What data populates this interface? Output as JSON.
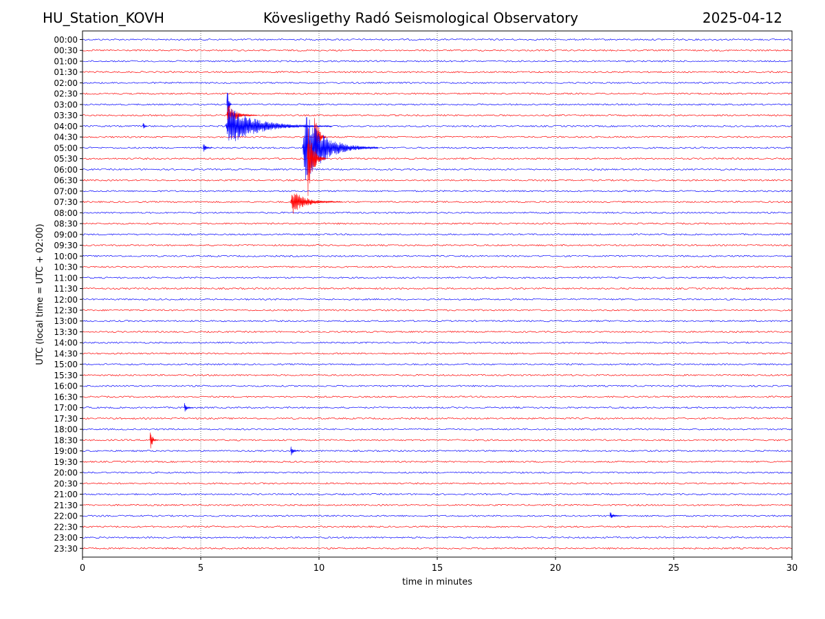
{
  "header": {
    "station": "HU_Station_KOVH",
    "title": "Kövesligethy Radó Seismological Observatory",
    "date": "2025-04-12"
  },
  "chart_data": {
    "type": "line",
    "title": "Kövesligethy Radó Seismological Observatory",
    "xlabel": "time in minutes",
    "ylabel": "UTC (local time = UTC + 02:00)",
    "xlim": [
      0,
      30
    ],
    "xticks": [
      0,
      5,
      10,
      15,
      20,
      25,
      30
    ],
    "grid": "vertical dotted at each x tick",
    "rows": [
      "00:00",
      "00:30",
      "01:00",
      "01:30",
      "02:00",
      "02:30",
      "03:00",
      "03:30",
      "04:00",
      "04:30",
      "05:00",
      "05:30",
      "06:00",
      "06:30",
      "07:00",
      "07:30",
      "08:00",
      "08:30",
      "09:00",
      "09:30",
      "10:00",
      "10:30",
      "11:00",
      "11:30",
      "12:00",
      "12:30",
      "13:00",
      "13:30",
      "14:00",
      "14:30",
      "15:00",
      "15:30",
      "16:00",
      "16:30",
      "17:00",
      "17:30",
      "18:00",
      "18:30",
      "19:00",
      "19:30",
      "20:00",
      "20:30",
      "21:00",
      "21:30",
      "22:00",
      "22:30",
      "23:00",
      "23:30"
    ],
    "row_colors": [
      "#0000ff",
      "#ff0000"
    ],
    "events": [
      {
        "row": "03:00",
        "minute": 6.1,
        "peak": 1.0,
        "duration": 0.2
      },
      {
        "row": "03:30",
        "minute": 6.1,
        "peak": 0.35,
        "duration": 1.3
      },
      {
        "row": "04:00",
        "minute": 6.05,
        "peak": 0.55,
        "duration": 4.5
      },
      {
        "row": "04:00",
        "minute": 2.55,
        "peak": 0.2,
        "duration": 0.2
      },
      {
        "row": "04:30",
        "minute": 9.8,
        "peak": 1.1,
        "duration": 0.5
      },
      {
        "row": "05:00",
        "minute": 9.3,
        "peak": 1.0,
        "duration": 3.2
      },
      {
        "row": "05:00",
        "minute": 5.1,
        "peak": 0.15,
        "duration": 0.4
      },
      {
        "row": "05:30",
        "minute": 9.5,
        "peak": 1.1,
        "duration": 0.8
      },
      {
        "row": "07:30",
        "minute": 8.8,
        "peak": 0.35,
        "duration": 2.2
      },
      {
        "row": "17:00",
        "minute": 4.3,
        "peak": 0.15,
        "duration": 0.4
      },
      {
        "row": "18:30",
        "minute": 2.85,
        "peak": 0.35,
        "duration": 0.35
      },
      {
        "row": "19:00",
        "minute": 8.8,
        "peak": 0.15,
        "duration": 0.4
      },
      {
        "row": "22:00",
        "minute": 22.3,
        "peak": 0.12,
        "duration": 0.5
      }
    ]
  }
}
